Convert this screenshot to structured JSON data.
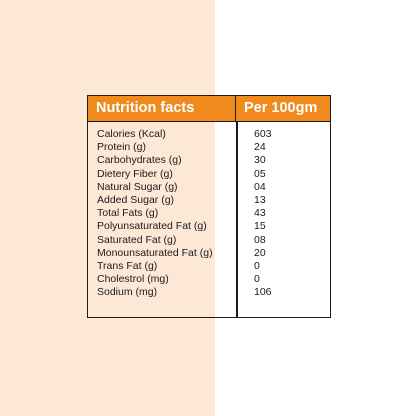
{
  "table": {
    "header": {
      "left": "Nutrition facts",
      "right": "Per 100gm"
    },
    "rows": [
      {
        "label": "Calories (Kcal)",
        "value": "603"
      },
      {
        "label": "Protein (g)",
        "value": "24"
      },
      {
        "label": "Carbohydrates (g)",
        "value": "30"
      },
      {
        "label": "Dietery Fiber (g)",
        "value": "05"
      },
      {
        "label": "Natural Sugar (g)",
        "value": "04"
      },
      {
        "label": "Added Sugar (g)",
        "value": "13"
      },
      {
        "label": "Total Fats (g)",
        "value": "43"
      },
      {
        "label": "Polyunsaturated Fat (g)",
        "value": "15"
      },
      {
        "label": "Saturated Fat (g)",
        "value": "08"
      },
      {
        "label": "Monounsaturated Fat (g)",
        "value": "20"
      },
      {
        "label": "Trans Fat (g)",
        "value": "0"
      },
      {
        "label": "Cholestrol (mg)",
        "value": "0"
      },
      {
        "label": "Sodium (mg)",
        "value": "106"
      }
    ]
  },
  "colors": {
    "header_bg": "#f08a1c",
    "left_background": "#fde8d6",
    "right_background": "#ffffff",
    "border": "#1b1b1b"
  }
}
